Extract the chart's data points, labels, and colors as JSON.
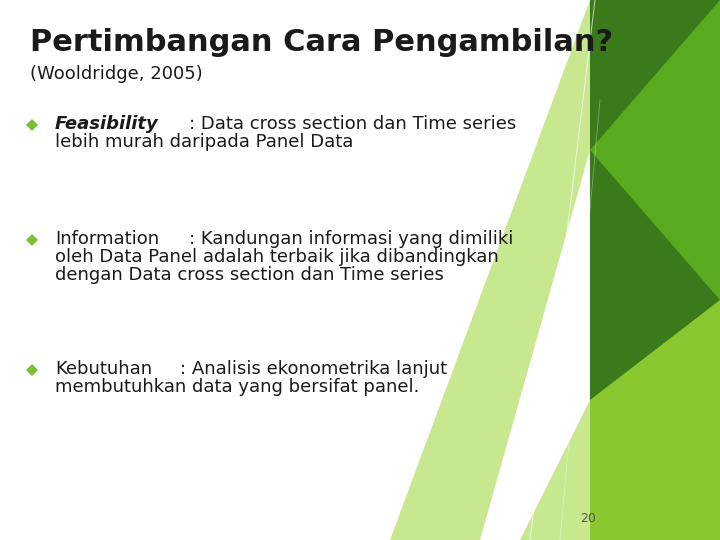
{
  "title": "Pertimbangan Cara Pengambilan?",
  "subtitle": "(Wooldridge, 2005)",
  "bullets": [
    {
      "label": "Feasibility",
      "label_italic": true,
      "text": ": Data cross section dan Time series\nlebih murah daripada Panel Data"
    },
    {
      "label": "Information",
      "label_italic": false,
      "text": ": Kandungan informasi yang dimiliki\noleh Data Panel adalah terbaik jika dibandingkan\ndengan Data cross section dan Time series"
    },
    {
      "label": "Kebutuhan",
      "label_italic": false,
      "text": ": Analisis ekonometrika lanjut\nmembutuhkan data yang bersifat panel."
    }
  ],
  "bg_color": "#ffffff",
  "title_color": "#1a1a1a",
  "subtitle_color": "#1a1a1a",
  "text_color": "#1a1a1a",
  "diamond_color": "#7abf35",
  "page_number": "20",
  "title_fontsize": 22,
  "subtitle_fontsize": 13,
  "bullet_fontsize": 13,
  "page_fontsize": 9,
  "shapes": {
    "dark_green": "#3a7a1a",
    "mid_green": "#5aaa20",
    "light_green": "#8ac830",
    "pale_green": "#c8e890"
  }
}
